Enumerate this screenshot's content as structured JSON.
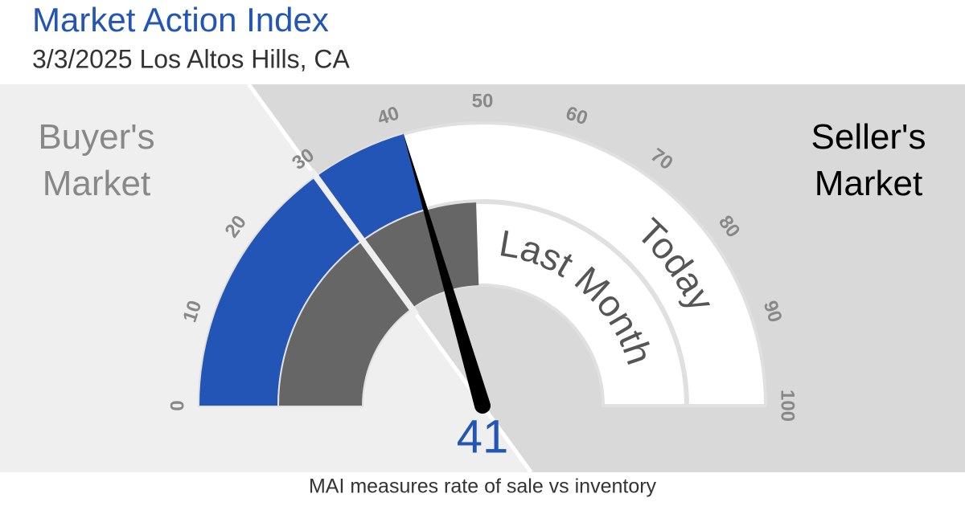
{
  "chart_data": {
    "type": "gauge",
    "title": "Market Action Index",
    "subtitle": "3/3/2025 Los Altos Hills, CA",
    "lim": [
      0,
      100
    ],
    "ticks": [
      0,
      10,
      20,
      30,
      40,
      50,
      60,
      70,
      80,
      90,
      100
    ],
    "threshold": 30,
    "left_label": "Buyer's Market",
    "right_label": "Seller's Market",
    "series": [
      {
        "name": "Today",
        "color": "#2255b5",
        "value": 41
      },
      {
        "name": "Last Month",
        "color": "#666666",
        "value": 49
      }
    ],
    "needle_color": "#000000",
    "footnote": "MAI measures rate of sale vs inventory"
  }
}
